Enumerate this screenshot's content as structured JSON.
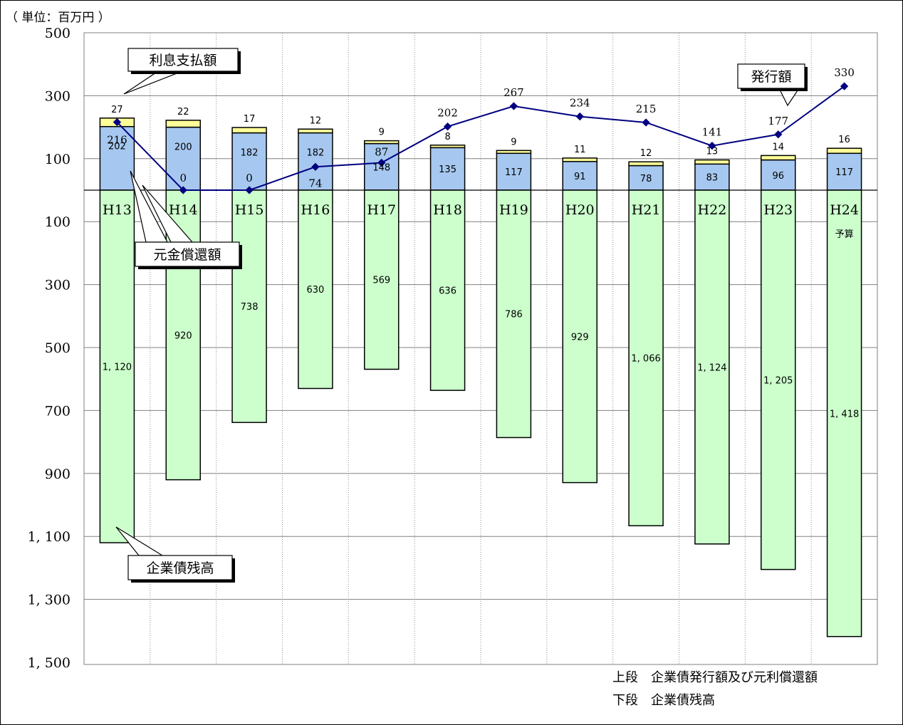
{
  "chart_data": {
    "type": "bar",
    "unit_label": "（ 単位：百万円 ）",
    "categories": [
      "H13",
      "H14",
      "H15",
      "H16",
      "H17",
      "H18",
      "H19",
      "H20",
      "H21",
      "H22",
      "H23",
      "H24"
    ],
    "category_notes": [
      "",
      "",
      "",
      "",
      "",
      "",
      "",
      "",
      "",
      "",
      "",
      "予算"
    ],
    "y_ticks": [
      "500",
      "300",
      "100",
      "100",
      "300",
      "500",
      "700",
      "900",
      "1, 100",
      "1, 300",
      "1, 500"
    ],
    "upper_range": [
      0,
      500
    ],
    "lower_range": [
      0,
      1500
    ],
    "series": [
      {
        "name": "元金償還額",
        "values": [
          202,
          200,
          182,
          182,
          148,
          135,
          117,
          91,
          78,
          83,
          96,
          117
        ],
        "color": "#a6c8f0"
      },
      {
        "name": "利息支払額",
        "values": [
          27,
          22,
          17,
          12,
          9,
          8,
          9,
          11,
          12,
          13,
          14,
          16
        ],
        "color": "#ffff99"
      },
      {
        "name": "企業債残高",
        "values": [
          1120,
          920,
          738,
          630,
          569,
          636,
          786,
          929,
          1066,
          1124,
          1205,
          1418
        ],
        "color": "#ccffcc"
      },
      {
        "name": "発行額",
        "values": [
          216,
          0,
          0,
          74,
          87,
          202,
          267,
          234,
          215,
          141,
          177,
          330
        ],
        "color": "#000080"
      }
    ],
    "value_labels": {
      "principal": [
        "202",
        "200",
        "182",
        "182",
        "148",
        "135",
        "117",
        "91",
        "78",
        "83",
        "96",
        "117"
      ],
      "interest": [
        "27",
        "22",
        "17",
        "12",
        "9",
        "8",
        "9",
        "11",
        "12",
        "13",
        "14",
        "16"
      ],
      "balance": [
        "1, 120",
        "920",
        "738",
        "630",
        "569",
        "636",
        "786",
        "929",
        "1, 066",
        "1, 124",
        "1, 205",
        "1, 418"
      ],
      "issuance": [
        "216",
        "0",
        "0",
        "74",
        "87",
        "202",
        "267",
        "234",
        "215",
        "141",
        "177",
        "330"
      ]
    },
    "callouts": {
      "interest": "利息支払額",
      "principal": "元金償還額",
      "balance": "企業債残高",
      "issuance": "発行額"
    },
    "legend_lines": [
      "上段　企業債発行額及び元利償還額",
      "下段　企業債残高"
    ],
    "grid": true
  }
}
